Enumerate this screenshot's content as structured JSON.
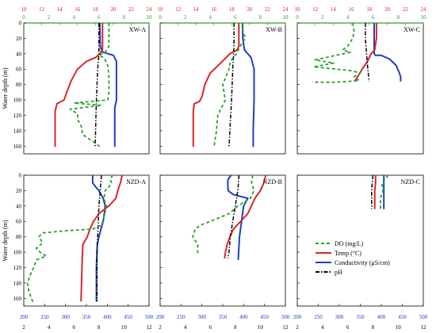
{
  "chart_data": {
    "type": "line",
    "ylabel": "Water depth (m)",
    "axes": {
      "temp_top": {
        "range": [
          10,
          24
        ],
        "ticks": [
          10,
          12,
          14,
          16,
          18,
          20,
          22,
          24
        ],
        "color": "#d62728"
      },
      "do_top": {
        "range": [
          0,
          10
        ],
        "ticks": [
          0,
          2,
          4,
          6,
          8,
          10
        ],
        "color": "#2ca02c"
      },
      "cond_bottom": {
        "range": [
          200,
          500
        ],
        "ticks": [
          200,
          250,
          300,
          350,
          400,
          450,
          500
        ],
        "color": "#1f3fbf"
      },
      "ph_bottom": {
        "range": [
          2,
          12
        ],
        "ticks": [
          2,
          4,
          6,
          8,
          10,
          12
        ],
        "color": "#000000"
      },
      "depth": {
        "range": [
          0,
          170
        ],
        "ticks": [
          0,
          20,
          40,
          60,
          80,
          100,
          120,
          140,
          160
        ]
      }
    },
    "legend": [
      {
        "key": "do",
        "label": "DO (mg/L)",
        "color": "#2ca02c",
        "dash": "4,3"
      },
      {
        "key": "temp",
        "label": "Temp (°C)",
        "color": "#d62728",
        "dash": ""
      },
      {
        "key": "cond",
        "label": "Conductivity (μS/cm)",
        "color": "#1f3fbf",
        "dash": ""
      },
      {
        "key": "ph",
        "label": "pH",
        "color": "#000000",
        "dash": "5,2,1.5,2"
      }
    ],
    "panels": [
      {
        "label": "XW-A",
        "temp": [
          [
            18.8,
            0
          ],
          [
            18.8,
            35
          ],
          [
            18.5,
            40
          ],
          [
            18,
            45
          ],
          [
            17,
            50
          ],
          [
            16,
            60
          ],
          [
            15.3,
            75
          ],
          [
            14.8,
            90
          ],
          [
            14.5,
            100
          ],
          [
            13.7,
            105
          ],
          [
            13.5,
            115
          ],
          [
            13.5,
            161
          ]
        ],
        "do": [
          [
            6.8,
            0
          ],
          [
            6.8,
            30
          ],
          [
            6.5,
            38
          ],
          [
            6.0,
            42
          ],
          [
            6.4,
            45
          ],
          [
            6.7,
            55
          ],
          [
            6.8,
            70
          ],
          [
            6.8,
            90
          ],
          [
            6.7,
            100
          ],
          [
            4.0,
            104
          ],
          [
            6.2,
            107
          ],
          [
            3.7,
            112
          ],
          [
            4.3,
            118
          ],
          [
            4.3,
            125
          ],
          [
            4.6,
            135
          ],
          [
            4.7,
            145
          ],
          [
            5.6,
            155
          ],
          [
            6.1,
            161
          ]
        ],
        "cond": [
          [
            382,
            0
          ],
          [
            383,
            30
          ],
          [
            386,
            35
          ],
          [
            390,
            38
          ],
          [
            415,
            42
          ],
          [
            422,
            50
          ],
          [
            422,
            100
          ],
          [
            418,
            110
          ],
          [
            418,
            161
          ]
        ],
        "ph": [
          [
            8.0,
            0
          ],
          [
            8.0,
            40
          ],
          [
            7.9,
            60
          ],
          [
            7.85,
            80
          ],
          [
            7.8,
            100
          ],
          [
            7.75,
            130
          ],
          [
            7.7,
            161
          ]
        ]
      },
      {
        "label": "XW-B",
        "temp": [
          [
            18.8,
            0
          ],
          [
            18.8,
            30
          ],
          [
            18.6,
            35
          ],
          [
            17.8,
            40
          ],
          [
            16.5,
            55
          ],
          [
            15.6,
            65
          ],
          [
            15.0,
            80
          ],
          [
            14.7,
            95
          ],
          [
            14.4,
            102
          ],
          [
            13.8,
            105
          ],
          [
            13.7,
            115
          ],
          [
            13.7,
            161
          ]
        ],
        "do": [
          [
            6.6,
            0
          ],
          [
            6.6,
            10
          ],
          [
            6.8,
            20
          ],
          [
            6.4,
            30
          ],
          [
            6.1,
            40
          ],
          [
            5.6,
            50
          ],
          [
            5.5,
            60
          ],
          [
            5.0,
            80
          ],
          [
            5.2,
            100
          ],
          [
            4.6,
            120
          ],
          [
            4.5,
            140
          ],
          [
            4.3,
            161
          ]
        ],
        "cond": [
          [
            397,
            0
          ],
          [
            398,
            20
          ],
          [
            402,
            35
          ],
          [
            410,
            40
          ],
          [
            418,
            45
          ],
          [
            425,
            60
          ],
          [
            425,
            100
          ],
          [
            423,
            140
          ],
          [
            423,
            161
          ]
        ],
        "ph": [
          [
            7.9,
            0
          ],
          [
            7.9,
            30
          ],
          [
            7.8,
            60
          ],
          [
            7.7,
            100
          ],
          [
            7.6,
            130
          ],
          [
            7.5,
            161
          ]
        ]
      },
      {
        "label": "XW-C",
        "temp": [
          [
            18.8,
            0
          ],
          [
            18.8,
            20
          ],
          [
            18.6,
            35
          ],
          [
            18.2,
            40
          ],
          [
            17.8,
            50
          ],
          [
            17.2,
            60
          ],
          [
            16.7,
            70
          ],
          [
            16.4,
            75
          ]
        ],
        "do": [
          [
            4.4,
            0
          ],
          [
            4.5,
            10
          ],
          [
            4.4,
            20
          ],
          [
            4.0,
            30
          ],
          [
            3.6,
            35
          ],
          [
            4.2,
            38
          ],
          [
            1.4,
            48
          ],
          [
            2.9,
            52
          ],
          [
            1.3,
            57
          ],
          [
            4.3,
            62
          ],
          [
            5.0,
            65
          ],
          [
            4.5,
            70
          ],
          [
            4.9,
            75
          ],
          [
            3.0,
            77
          ],
          [
            1.2,
            77
          ]
        ],
        "cond": [
          [
            383,
            0
          ],
          [
            383,
            40
          ],
          [
            386,
            42
          ],
          [
            400,
            42
          ],
          [
            420,
            47
          ],
          [
            435,
            55
          ],
          [
            443,
            65
          ],
          [
            446,
            70
          ],
          [
            446,
            76
          ]
        ],
        "ph": [
          [
            7.4,
            0
          ],
          [
            7.4,
            20
          ],
          [
            7.5,
            40
          ],
          [
            7.6,
            60
          ],
          [
            7.7,
            76
          ]
        ]
      },
      {
        "label": "NZD-A",
        "temp": [
          [
            21.0,
            0
          ],
          [
            20.8,
            10
          ],
          [
            20.5,
            20
          ],
          [
            20.3,
            30
          ],
          [
            19.5,
            40
          ],
          [
            18.4,
            50
          ],
          [
            17.8,
            60
          ],
          [
            17.4,
            70
          ],
          [
            17.1,
            80
          ],
          [
            16.6,
            90
          ],
          [
            16.5,
            120
          ],
          [
            16.4,
            164
          ]
        ],
        "do": [
          [
            7.1,
            0
          ],
          [
            6.9,
            5
          ],
          [
            7.0,
            10
          ],
          [
            6.8,
            15
          ],
          [
            6.5,
            20
          ],
          [
            6.4,
            30
          ],
          [
            6.6,
            40
          ],
          [
            6.4,
            55
          ],
          [
            6.2,
            65
          ],
          [
            5.5,
            70
          ],
          [
            3.5,
            72
          ],
          [
            1.5,
            75
          ],
          [
            1.2,
            80
          ],
          [
            1.5,
            88
          ],
          [
            1.0,
            95
          ],
          [
            1.3,
            100
          ],
          [
            1.8,
            105
          ],
          [
            1.0,
            110
          ],
          [
            0.8,
            120
          ],
          [
            0.5,
            130
          ],
          [
            0.3,
            140
          ],
          [
            0.4,
            150
          ],
          [
            0.6,
            160
          ],
          [
            0.8,
            167
          ]
        ],
        "cond": [
          [
            365,
            0
          ],
          [
            365,
            10
          ],
          [
            372,
            15
          ],
          [
            380,
            20
          ],
          [
            390,
            30
          ],
          [
            395,
            40
          ],
          [
            393,
            50
          ],
          [
            390,
            60
          ],
          [
            385,
            70
          ],
          [
            380,
            80
          ],
          [
            376,
            90
          ],
          [
            374,
            120
          ],
          [
            374,
            164
          ]
        ],
        "ph": [
          [
            8.2,
            0
          ],
          [
            8.1,
            20
          ],
          [
            8.0,
            40
          ],
          [
            7.95,
            60
          ],
          [
            7.9,
            80
          ],
          [
            7.85,
            100
          ],
          [
            7.85,
            130
          ],
          [
            7.85,
            164
          ]
        ]
      },
      {
        "label": "NZD-B",
        "temp": [
          [
            21.8,
            0
          ],
          [
            21.6,
            10
          ],
          [
            21.2,
            20
          ],
          [
            20.6,
            30
          ],
          [
            20.2,
            40
          ],
          [
            19.8,
            50
          ],
          [
            19.0,
            60
          ],
          [
            18.2,
            70
          ],
          [
            17.8,
            80
          ],
          [
            17.5,
            90
          ],
          [
            17.3,
            100
          ],
          [
            17.2,
            108
          ]
        ],
        "do": [
          [
            7.4,
            0
          ],
          [
            7.3,
            10
          ],
          [
            7.5,
            20
          ],
          [
            7.2,
            30
          ],
          [
            6.2,
            40
          ],
          [
            5.5,
            50
          ],
          [
            4.0,
            60
          ],
          [
            3.2,
            65
          ],
          [
            2.8,
            70
          ],
          [
            2.6,
            80
          ],
          [
            3.0,
            90
          ],
          [
            3.0,
            102
          ]
        ],
        "cond": [
          [
            370,
            0
          ],
          [
            363,
            5
          ],
          [
            362,
            10
          ],
          [
            363,
            20
          ],
          [
            375,
            25
          ],
          [
            410,
            30
          ],
          [
            400,
            40
          ],
          [
            395,
            60
          ],
          [
            390,
            80
          ],
          [
            388,
            100
          ],
          [
            387,
            110
          ]
        ],
        "ph": [
          [
            8.3,
            0
          ],
          [
            8.2,
            20
          ],
          [
            8.0,
            40
          ],
          [
            7.8,
            60
          ],
          [
            7.6,
            80
          ],
          [
            7.5,
            100
          ],
          [
            7.4,
            108
          ]
        ]
      },
      {
        "label": "NZD-C",
        "temp": [
          [
            18.7,
            0
          ],
          [
            18.7,
            10
          ],
          [
            18.6,
            20
          ],
          [
            18.6,
            30
          ],
          [
            18.6,
            44
          ]
        ],
        "do": [
          [
            7.2,
            0
          ],
          [
            7.0,
            5
          ],
          [
            6.7,
            10
          ],
          [
            6.8,
            20
          ],
          [
            6.6,
            30
          ],
          [
            6.6,
            44
          ]
        ],
        "cond": [
          [
            406,
            0
          ],
          [
            406,
            20
          ],
          [
            406,
            44
          ]
        ],
        "ph": [
          [
            8.0,
            0
          ],
          [
            7.9,
            20
          ],
          [
            7.9,
            44
          ]
        ]
      }
    ]
  }
}
